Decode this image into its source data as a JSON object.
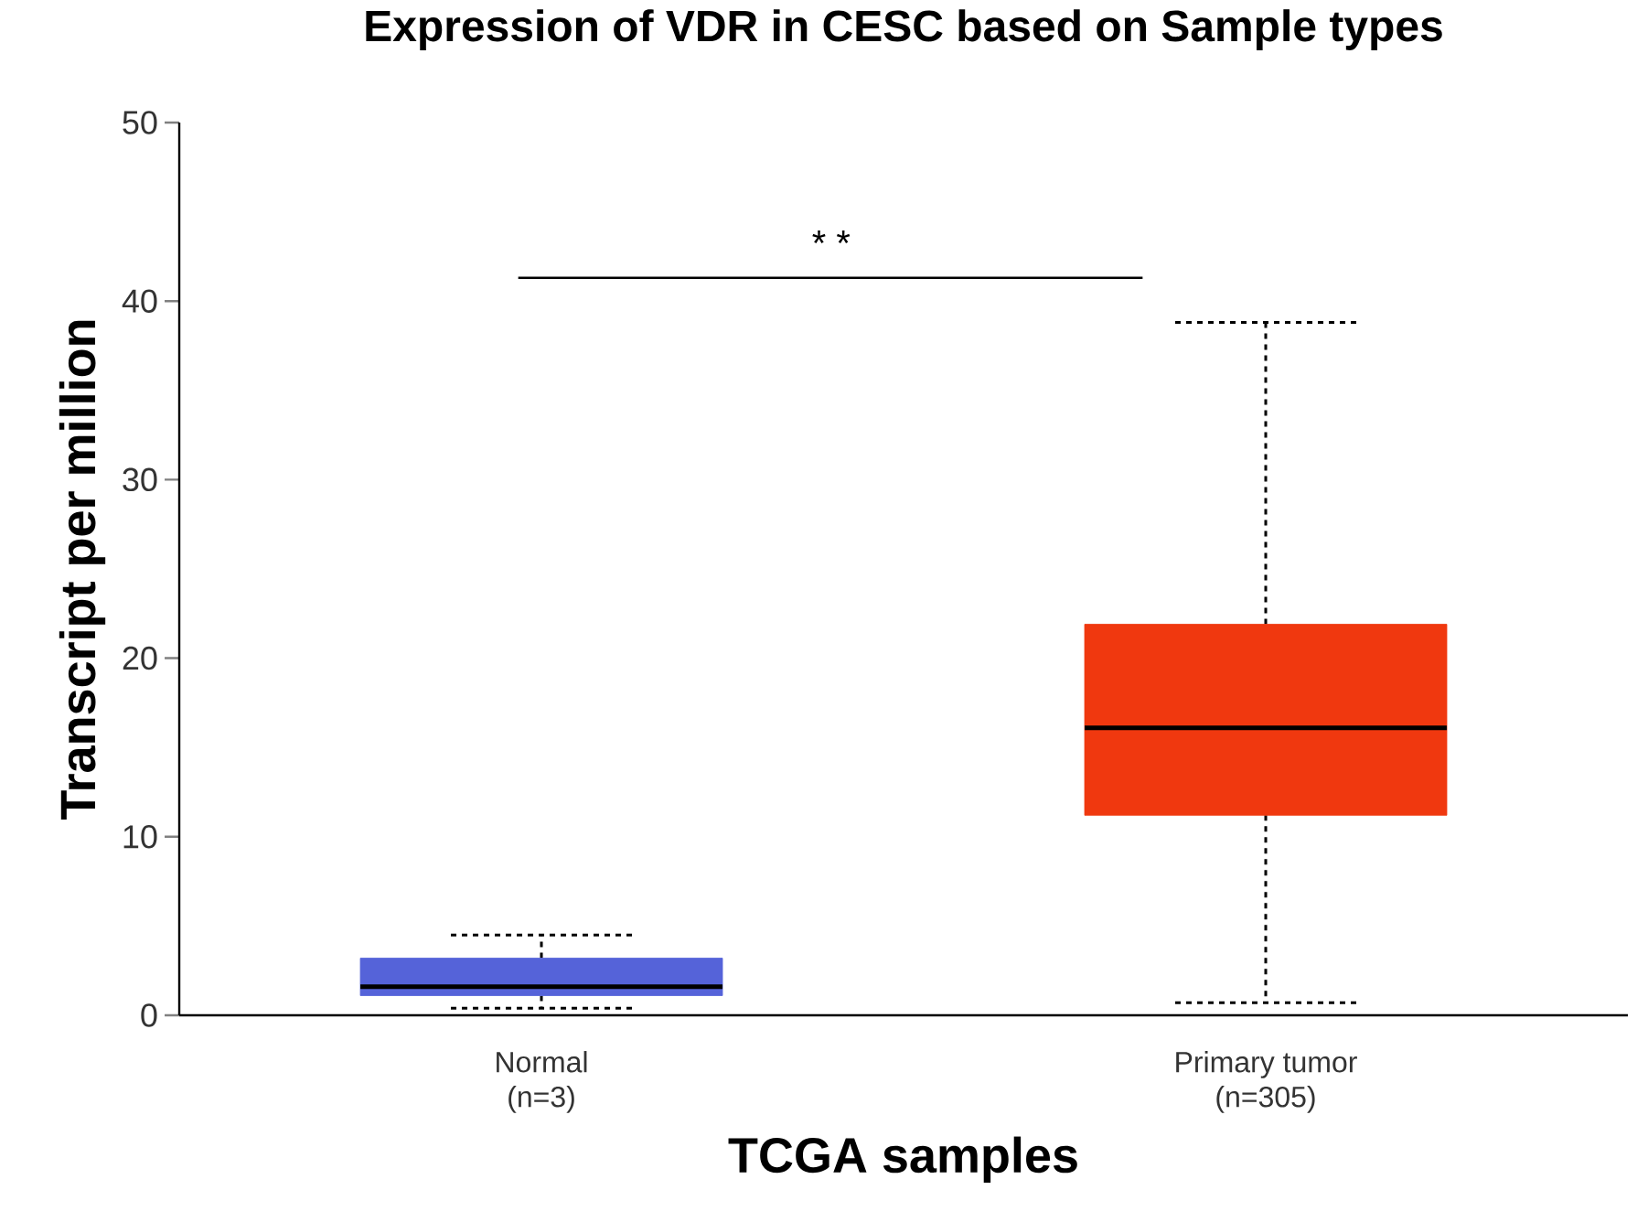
{
  "chart_data": {
    "type": "box",
    "title": "Expression of VDR in CESC based on Sample types",
    "xlabel": "TCGA samples",
    "ylabel": "Transcript per million",
    "categories": [
      "Normal (n=3)",
      "Primary tumor (n=305)"
    ],
    "colors": [
      "#5563d9",
      "#f0380f"
    ],
    "boxes": [
      {
        "low": 0.4,
        "q1": 1.1,
        "median": 1.6,
        "q3": 3.2,
        "high": 4.5
      },
      {
        "low": 0.7,
        "q1": 11.2,
        "median": 16.1,
        "q3": 21.9,
        "high": 38.8
      }
    ],
    "ylim": [
      0,
      50
    ],
    "yticks": [
      0,
      10,
      20,
      30,
      40,
      50
    ],
    "annotations": [
      "* *"
    ]
  }
}
